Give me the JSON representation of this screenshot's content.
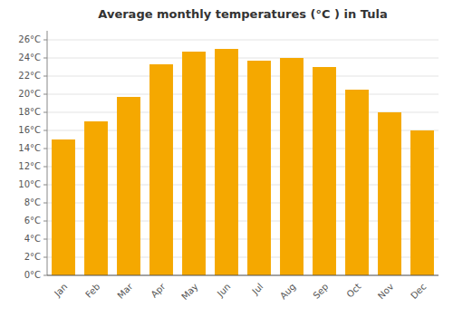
{
  "chart_data": {
    "type": "bar",
    "title": "Average monthly temperatures (°C ) in Tula",
    "categories": [
      "Jan",
      "Feb",
      "Mar",
      "Apr",
      "May",
      "Jun",
      "Jul",
      "Aug",
      "Sep",
      "Oct",
      "Nov",
      "Dec"
    ],
    "values": [
      15.0,
      17.0,
      19.7,
      23.3,
      24.7,
      25.0,
      23.7,
      24.0,
      23.0,
      20.5,
      18.0,
      16.0
    ],
    "color": "#F5A800",
    "ylim": [
      0,
      27
    ],
    "yticks": [
      {
        "value": 0,
        "label": "0°C"
      },
      {
        "value": 2,
        "label": "2°C"
      },
      {
        "value": 4,
        "label": "4°C"
      },
      {
        "value": 6,
        "label": "6°C"
      },
      {
        "value": 8,
        "label": "8°C"
      },
      {
        "value": 10,
        "label": "10°C"
      },
      {
        "value": 12,
        "label": "12°C"
      },
      {
        "value": 14,
        "label": "14°C"
      },
      {
        "value": 16,
        "label": "16°C"
      },
      {
        "value": 18,
        "label": "18°C"
      },
      {
        "value": 20,
        "label": "20°C"
      },
      {
        "value": 22,
        "label": "22°C"
      },
      {
        "value": 24,
        "label": "24°C"
      },
      {
        "value": 26,
        "label": "26°C"
      }
    ],
    "grid": true
  }
}
